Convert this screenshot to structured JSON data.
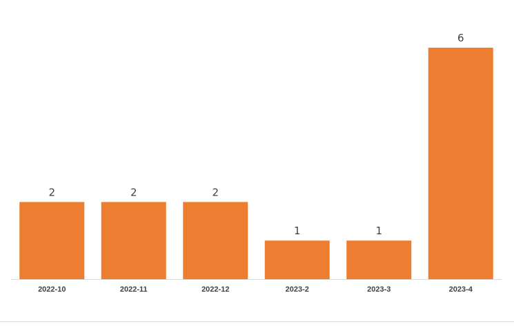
{
  "chart_data": {
    "type": "bar",
    "categories": [
      "2022-10",
      "2022-11",
      "2022-12",
      "2023-2",
      "2023-3",
      "2023-4"
    ],
    "values": [
      2,
      2,
      2,
      1,
      1,
      6
    ],
    "title": "",
    "xlabel": "",
    "ylabel": "",
    "ylim": [
      0,
      6
    ],
    "grid": false,
    "legend": "none",
    "data_labels": true,
    "bar_color": "#ED7D31"
  }
}
